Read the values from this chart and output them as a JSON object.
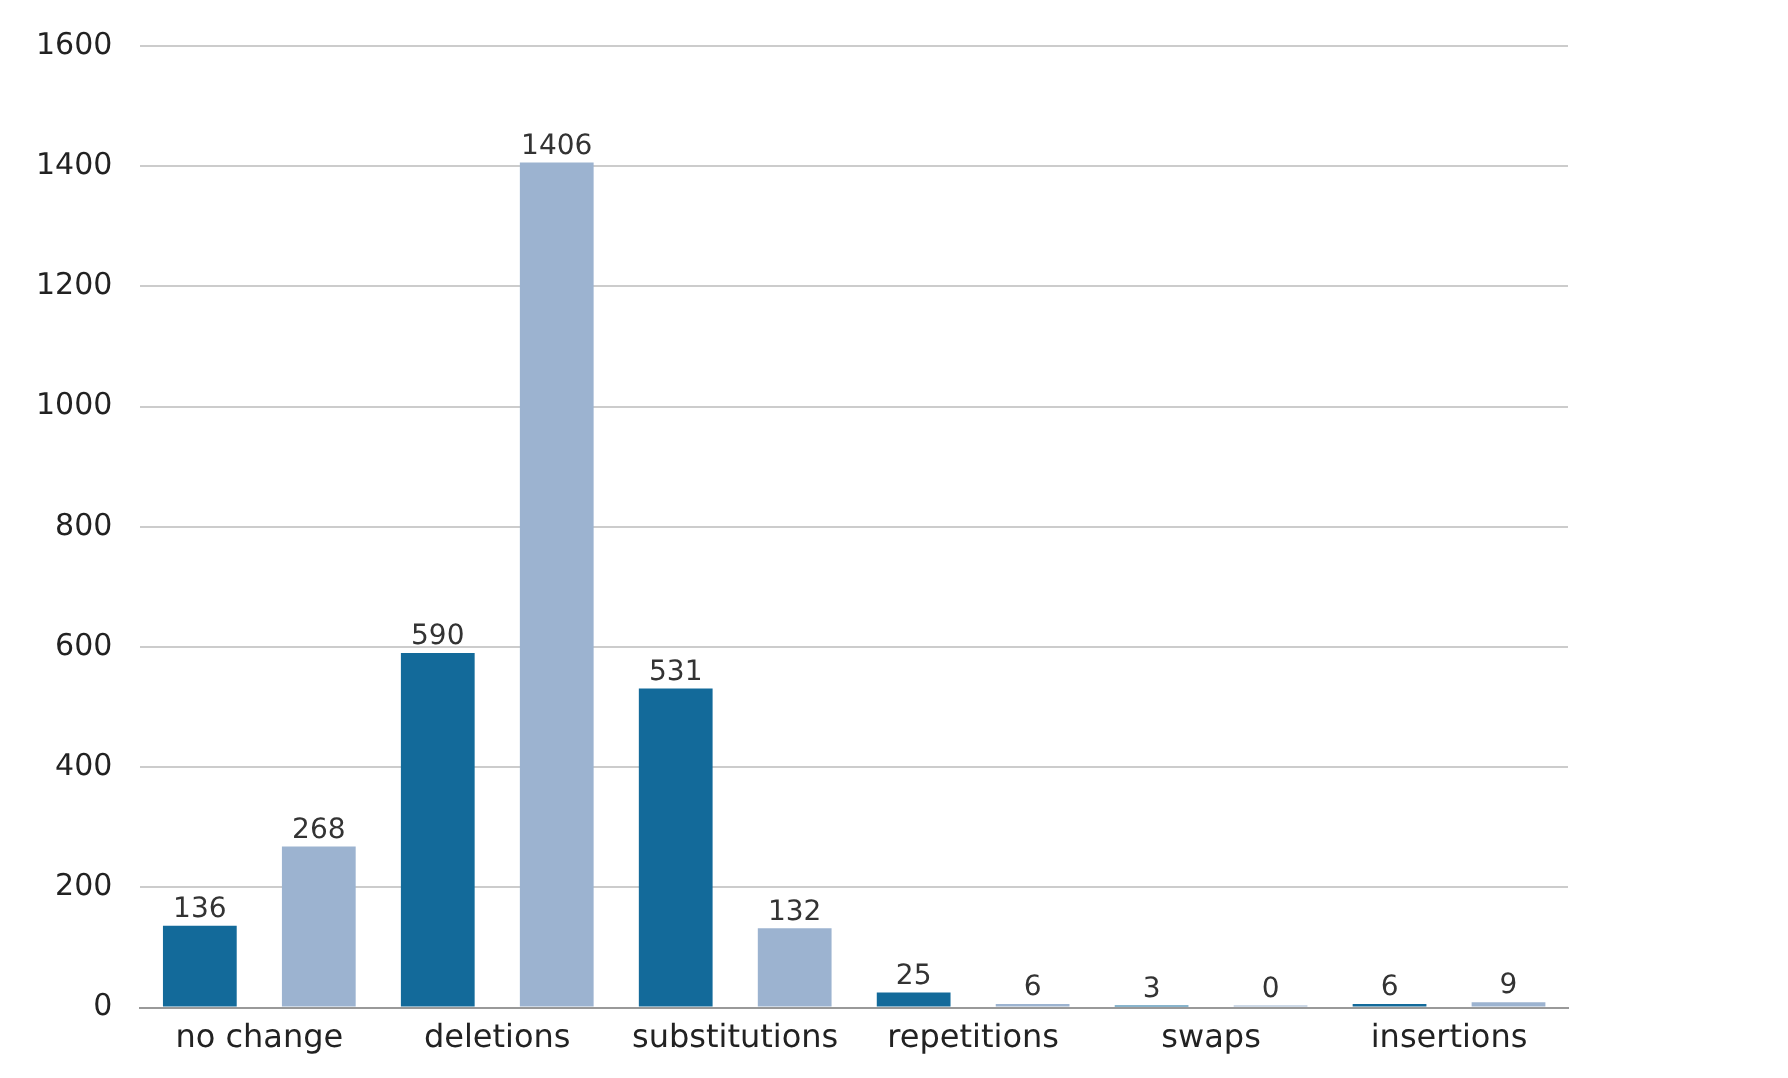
{
  "chart_data": {
    "type": "bar",
    "categories": [
      "no change",
      "deletions",
      "substitutions",
      "repetitions",
      "swaps",
      "insertions"
    ],
    "series": [
      {
        "color": "#136a9a",
        "values": [
          136,
          590,
          531,
          25,
          3,
          6
        ]
      },
      {
        "color": "#9cb3d0",
        "values": [
          268,
          1406,
          132,
          6,
          0,
          9
        ]
      }
    ],
    "ylim": [
      0,
      1600
    ],
    "yticks": [
      0,
      200,
      400,
      600,
      800,
      1000,
      1200,
      1400,
      1600
    ],
    "grid": "y",
    "data_labels": true
  }
}
